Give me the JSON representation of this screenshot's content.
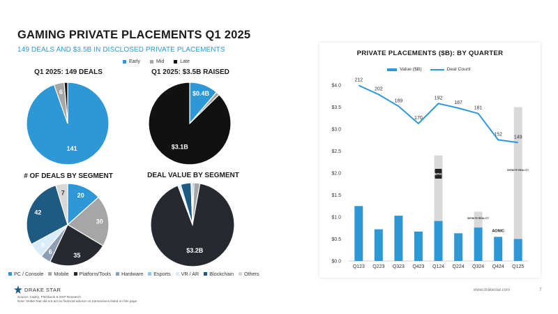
{
  "page": {
    "title": "GAMING PRIVATE PLACEMENTS Q1 2025",
    "subtitle": "149 DEALS AND $3.5B IN DISCLOSED PRIVATE PLACEMENTS",
    "website": "www.drakestar.com",
    "page_number": "7",
    "logo_text": "DRAKE STAR",
    "source_line1": "Source: CapIQ, Pitchbook & DSP Research",
    "source_line2": "Note: Drake Star did not act as financial advisor on transactions listed on this page"
  },
  "colors": {
    "blue": "#2e98d6",
    "grey": "#a6a6a6",
    "dark": "#262a30",
    "steel": "#8e9fb5",
    "light_blue": "#8ecbe8",
    "very_light": "#d8edf7",
    "navy": "#1e5a82",
    "others": "#d7d7d7",
    "bar_upper": "#d9d9d9"
  },
  "stage_legend": [
    "Early",
    "Mid",
    "Late"
  ],
  "segment_legend": [
    "PC / Console",
    "Mobile",
    "Platform/Tools",
    "Hardware",
    "Esports",
    "VR / AR",
    "Blockchain",
    "Others"
  ],
  "chart_data": [
    {
      "type": "pie",
      "title": "Q1 2025: 149 DEALS",
      "labels": [
        "Early",
        "Mid",
        "Late"
      ],
      "values": [
        141,
        6,
        2
      ],
      "value_labels": [
        "141",
        "6",
        ""
      ]
    },
    {
      "type": "pie",
      "title": "Q1 2025: $3.5B RAISED",
      "labels": [
        "Early",
        "Mid",
        "Late"
      ],
      "values": [
        0.4,
        0.05,
        3.1
      ],
      "value_labels": [
        "$0.4B",
        "",
        "$3.1B"
      ]
    },
    {
      "type": "pie",
      "title": "# OF DEALS BY SEGMENT",
      "labels": [
        "PC / Console",
        "Mobile",
        "Platform/Tools",
        "Hardware",
        "Esports",
        "VR / AR",
        "Blockchain",
        "Others"
      ],
      "values": [
        20,
        30,
        35,
        6,
        0,
        9,
        42,
        7
      ],
      "value_labels": [
        "20",
        "30",
        "35",
        "6",
        "",
        "9",
        "42",
        "7"
      ]
    },
    {
      "type": "pie",
      "title": "DEAL VALUE BY SEGMENT",
      "labels": [
        "PC / Console",
        "Mobile",
        "Platform/Tools",
        "Hardware",
        "Esports",
        "VR / AR",
        "Blockchain",
        "Others"
      ],
      "values": [
        0.02,
        0.08,
        3.2,
        0.01,
        0.0,
        0.03,
        0.14,
        0.02
      ],
      "value_labels": [
        "",
        "",
        "$3.2B",
        "",
        "",
        "",
        "",
        ""
      ]
    },
    {
      "type": "bar",
      "title": "PRIVATE PLACEMENTS ($B): BY QUARTER",
      "categories": [
        "Q123",
        "Q223",
        "Q323",
        "Q423",
        "Q124",
        "Q224",
        "Q324",
        "Q424",
        "Q125"
      ],
      "series": [
        {
          "name": "Value ($B)",
          "values": [
            1.25,
            0.72,
            1.03,
            0.67,
            2.4,
            0.63,
            1.12,
            0.55,
            3.5
          ],
          "highlighted_values": [
            1.25,
            0.72,
            1.03,
            0.67,
            0.91,
            0.63,
            0.76,
            0.55,
            0.5
          ]
        },
        {
          "name": "Deal Count",
          "values": [
            212,
            202,
            189,
            170,
            192,
            187,
            181,
            152,
            149
          ]
        }
      ],
      "ylim": [
        0,
        4.0
      ],
      "yticks": [
        "$0.0",
        "$0.5",
        "$1.0",
        "$1.5",
        "$2.0",
        "$2.5",
        "$3.0",
        "$3.5",
        "$4.0"
      ],
      "annotations": [
        {
          "quarter": "Q124",
          "text": "EPIC"
        },
        {
          "quarter": "Q324",
          "text": "INFINITE REALITY"
        },
        {
          "quarter": "Q424",
          "text": "AONIC"
        },
        {
          "quarter": "Q125",
          "text": "INFINITE REALITY"
        }
      ]
    }
  ]
}
